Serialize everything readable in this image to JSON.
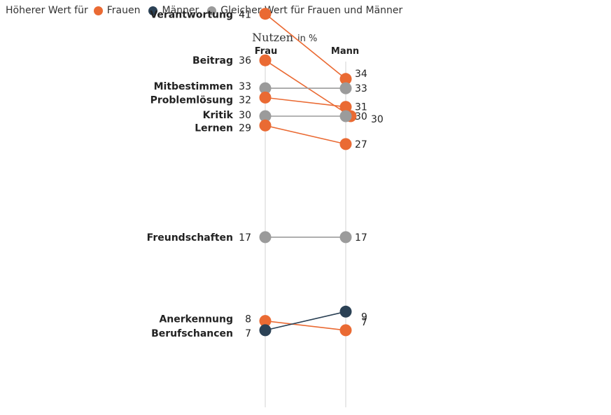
{
  "legend": {
    "lead": "Höherer Wert für",
    "items": [
      {
        "label": "Frauen",
        "color": "#ea6a33"
      },
      {
        "label": "Männer",
        "color": "#2b4155"
      },
      {
        "label": "Gleicher Wert für Frauen und Männer",
        "color": "#9b9b9b"
      }
    ]
  },
  "chart_data": {
    "type": "slope",
    "title": "Nutzen",
    "unit": "in %",
    "columns": [
      "Frau",
      "Mann"
    ],
    "colors": {
      "frauen": "#ea6a33",
      "maenner": "#2b4155",
      "gleich": "#9b9b9b"
    },
    "categories": [
      "Verantwortung",
      "Beitrag",
      "Mitbestimmen",
      "Problemlösung",
      "Kritik",
      "Lernen",
      "Freundschaften",
      "Anerkennung",
      "Berufschancen"
    ],
    "series": [
      {
        "name": "Frau",
        "values": [
          41,
          36,
          33,
          32,
          30,
          29,
          17,
          8,
          7
        ]
      },
      {
        "name": "Mann",
        "values": [
          34,
          30,
          33,
          31,
          30,
          27,
          17,
          7,
          9
        ]
      }
    ]
  }
}
